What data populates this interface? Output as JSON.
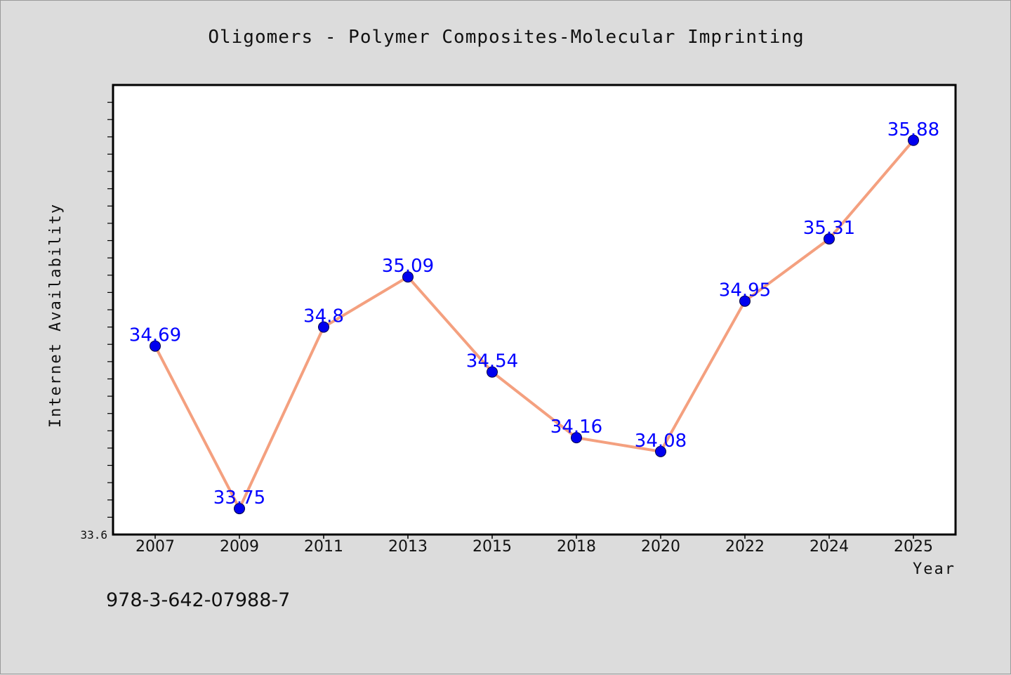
{
  "chart_data": {
    "type": "line",
    "title": "Oligomers - Polymer Composites-Molecular Imprinting",
    "xlabel": "Year",
    "ylabel": "Internet Availability",
    "categories": [
      "2007",
      "2009",
      "2011",
      "2013",
      "2015",
      "2018",
      "2020",
      "2022",
      "2024",
      "2025"
    ],
    "series": [
      {
        "values": [
          34.69,
          33.75,
          34.8,
          35.09,
          34.54,
          34.16,
          34.08,
          34.95,
          35.31,
          35.88
        ]
      }
    ],
    "data_labels": [
      "34.69",
      "33.75",
      "34.8",
      "35.09",
      "34.54",
      "34.16",
      "34.08",
      "34.95",
      "35.31",
      "35.88"
    ],
    "y_min_label": "33.6",
    "ylim": [
      33.6,
      36.2
    ],
    "y_minor_tick_step": 0.1,
    "grid": false,
    "colors": {
      "line": "#f4a07f",
      "marker": "#0000ee",
      "data_label": "#0000ff",
      "frame": "#000000",
      "background": "#dcdcdc",
      "plot_background": "#ffffff"
    }
  },
  "footer": {
    "text": "978-3-642-07988-7"
  }
}
